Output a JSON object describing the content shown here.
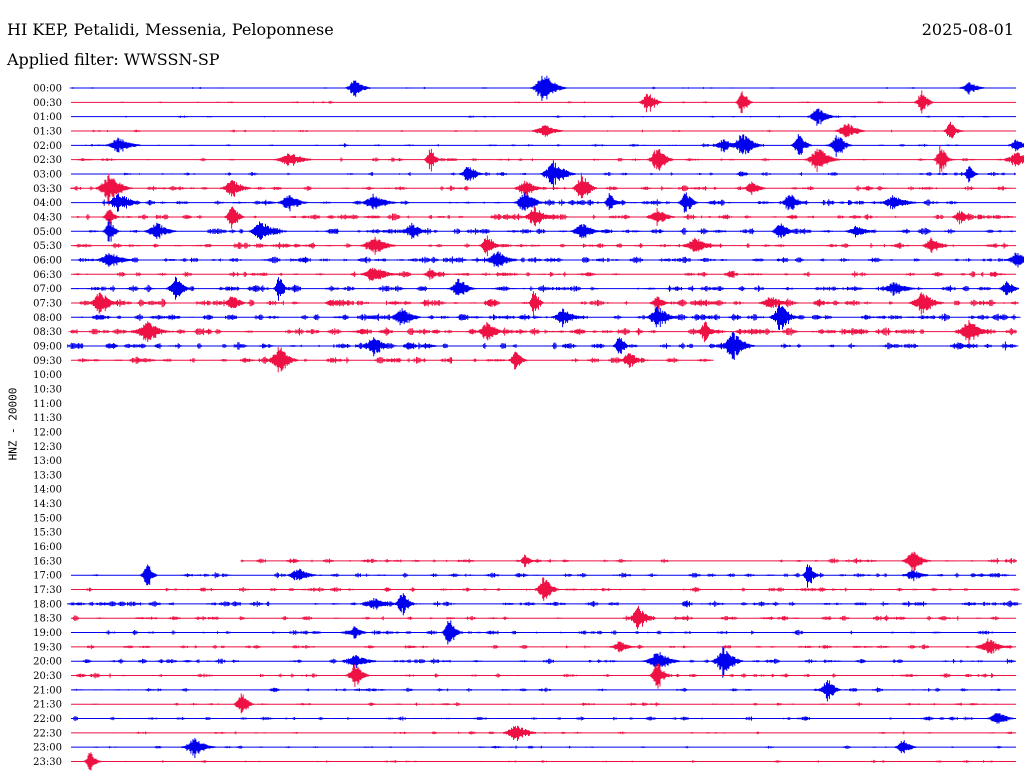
{
  "header": {
    "station": "HI KEP, Petalidi, Messenia, Peloponnese",
    "date": "2025-08-01",
    "filter": "Applied filter: WWSSN-SP",
    "channel": "HNZ - 20000"
  },
  "colors": {
    "blue": "#0000ee",
    "red": "#ee1144"
  },
  "chart_data": {
    "type": "line",
    "title": "HI KEP, Petalidi, Messenia, Peloponnese",
    "ylabel": "HNZ - 20000",
    "grid": false,
    "row_labels": [
      "00:00",
      "00:30",
      "01:00",
      "01:30",
      "02:00",
      "02:30",
      "03:00",
      "03:30",
      "04:00",
      "04:30",
      "05:00",
      "05:30",
      "06:00",
      "06:30",
      "07:00",
      "07:30",
      "08:00",
      "08:30",
      "09:00",
      "09:30",
      "10:00",
      "10:30",
      "11:00",
      "11:30",
      "12:00",
      "12:30",
      "13:00",
      "13:30",
      "14:00",
      "14:30",
      "15:00",
      "15:30",
      "16:00",
      "16:30",
      "17:00",
      "17:30",
      "18:00",
      "18:30",
      "19:00",
      "19:30",
      "20:00",
      "20:30",
      "21:00",
      "21:30",
      "22:00",
      "22:30",
      "23:00",
      "23:30"
    ],
    "series": [
      {
        "row": "00:00",
        "color": "blue",
        "start": 0,
        "end": 1,
        "noise": 0.3,
        "events": [
          0.3,
          0.5,
          0.95
        ]
      },
      {
        "row": "00:30",
        "color": "red",
        "start": 0,
        "end": 1,
        "noise": 0.3,
        "events": [
          0.61,
          0.71,
          0.9
        ]
      },
      {
        "row": "01:00",
        "color": "blue",
        "start": 0,
        "end": 1,
        "noise": 0.3,
        "events": [
          0.79
        ]
      },
      {
        "row": "01:30",
        "color": "red",
        "start": 0,
        "end": 1,
        "noise": 0.35,
        "events": [
          0.5,
          0.82,
          0.93
        ]
      },
      {
        "row": "02:00",
        "color": "blue",
        "start": 0,
        "end": 1,
        "noise": 0.6,
        "events": [
          0.05,
          0.69,
          0.71,
          0.77,
          0.81,
          1.0
        ]
      },
      {
        "row": "02:30",
        "color": "red",
        "start": 0,
        "end": 1,
        "noise": 0.7,
        "events": [
          0.23,
          0.38,
          0.62,
          0.79,
          0.92,
          1.0
        ]
      },
      {
        "row": "03:00",
        "color": "blue",
        "start": 0,
        "end": 1,
        "noise": 0.8,
        "events": [
          0.42,
          0.51,
          0.95
        ]
      },
      {
        "row": "03:30",
        "color": "red",
        "start": 0,
        "end": 1,
        "noise": 1.0,
        "events": [
          0.04,
          0.17,
          0.48,
          0.54,
          0.72
        ]
      },
      {
        "row": "04:00",
        "color": "blue",
        "start": 0,
        "end": 1,
        "noise": 1.2,
        "events": [
          0.05,
          0.23,
          0.32,
          0.48,
          0.57,
          0.65,
          0.76,
          0.87
        ]
      },
      {
        "row": "04:30",
        "color": "red",
        "start": 0,
        "end": 1,
        "noise": 1.3,
        "events": [
          0.04,
          0.17,
          0.49,
          0.62,
          0.94
        ]
      },
      {
        "row": "05:00",
        "color": "blue",
        "start": 0,
        "end": 1,
        "noise": 1.4,
        "events": [
          0.04,
          0.09,
          0.2,
          0.36,
          0.54,
          0.75,
          0.83
        ]
      },
      {
        "row": "05:30",
        "color": "red",
        "start": 0,
        "end": 1,
        "noise": 1.3,
        "events": [
          0.32,
          0.44,
          0.66,
          0.91
        ]
      },
      {
        "row": "06:00",
        "color": "blue",
        "start": 0,
        "end": 1,
        "noise": 1.3,
        "events": [
          0.04,
          0.45,
          1.0
        ]
      },
      {
        "row": "06:30",
        "color": "red",
        "start": 0,
        "end": 1,
        "noise": 1.2,
        "events": [
          0.32,
          0.38
        ]
      },
      {
        "row": "07:00",
        "color": "blue",
        "start": 0,
        "end": 1,
        "noise": 1.4,
        "events": [
          0.11,
          0.22,
          0.41,
          0.87,
          0.99
        ]
      },
      {
        "row": "07:30",
        "color": "red",
        "start": 0,
        "end": 1,
        "noise": 1.6,
        "events": [
          0.03,
          0.17,
          0.49,
          0.62,
          0.74,
          0.9
        ]
      },
      {
        "row": "08:00",
        "color": "blue",
        "start": 0,
        "end": 1,
        "noise": 1.5,
        "events": [
          0.35,
          0.52,
          0.62,
          0.75
        ]
      },
      {
        "row": "08:30",
        "color": "red",
        "start": 0,
        "end": 1,
        "noise": 1.6,
        "events": [
          0.08,
          0.44,
          0.67,
          0.95
        ]
      },
      {
        "row": "09:00",
        "color": "blue",
        "start": 0,
        "end": 1,
        "noise": 1.5,
        "events": [
          0.32,
          0.58,
          0.7
        ]
      },
      {
        "row": "09:30",
        "color": "red",
        "start": 0,
        "end": 0.68,
        "noise": 1.3,
        "events": [
          0.22,
          0.47,
          0.59
        ]
      },
      {
        "row": "16:30",
        "color": "red",
        "start": 0.18,
        "end": 1,
        "noise": 1.0,
        "events": [
          0.48,
          0.89
        ]
      },
      {
        "row": "17:00",
        "color": "blue",
        "start": 0,
        "end": 1,
        "noise": 1.1,
        "events": [
          0.08,
          0.24,
          0.78,
          0.89
        ]
      },
      {
        "row": "17:30",
        "color": "red",
        "start": 0,
        "end": 1,
        "noise": 1.0,
        "events": [
          0.5
        ]
      },
      {
        "row": "18:00",
        "color": "blue",
        "start": 0,
        "end": 1,
        "noise": 1.2,
        "events": [
          0.32,
          0.35
        ]
      },
      {
        "row": "18:30",
        "color": "red",
        "start": 0,
        "end": 1,
        "noise": 1.0,
        "events": [
          0.6
        ]
      },
      {
        "row": "19:00",
        "color": "blue",
        "start": 0,
        "end": 1,
        "noise": 1.0,
        "events": [
          0.3,
          0.4
        ]
      },
      {
        "row": "19:30",
        "color": "red",
        "start": 0,
        "end": 1,
        "noise": 0.9,
        "events": [
          0.58,
          0.97
        ]
      },
      {
        "row": "20:00",
        "color": "blue",
        "start": 0,
        "end": 1,
        "noise": 1.0,
        "events": [
          0.3,
          0.62,
          0.69
        ]
      },
      {
        "row": "20:30",
        "color": "red",
        "start": 0,
        "end": 1,
        "noise": 0.9,
        "events": [
          0.3,
          0.62
        ]
      },
      {
        "row": "21:00",
        "color": "blue",
        "start": 0,
        "end": 1,
        "noise": 0.8,
        "events": [
          0.8
        ]
      },
      {
        "row": "21:30",
        "color": "red",
        "start": 0,
        "end": 1,
        "noise": 0.6,
        "events": [
          0.18
        ]
      },
      {
        "row": "22:00",
        "color": "blue",
        "start": 0,
        "end": 1,
        "noise": 0.8,
        "events": [
          0.98
        ]
      },
      {
        "row": "22:30",
        "color": "red",
        "start": 0,
        "end": 1,
        "noise": 0.5,
        "events": [
          0.47
        ]
      },
      {
        "row": "23:00",
        "color": "blue",
        "start": 0,
        "end": 1,
        "noise": 0.5,
        "events": [
          0.13,
          0.88
        ]
      },
      {
        "row": "23:30",
        "color": "red",
        "start": 0,
        "end": 1,
        "noise": 0.5,
        "events": [
          0.02
        ]
      }
    ]
  }
}
